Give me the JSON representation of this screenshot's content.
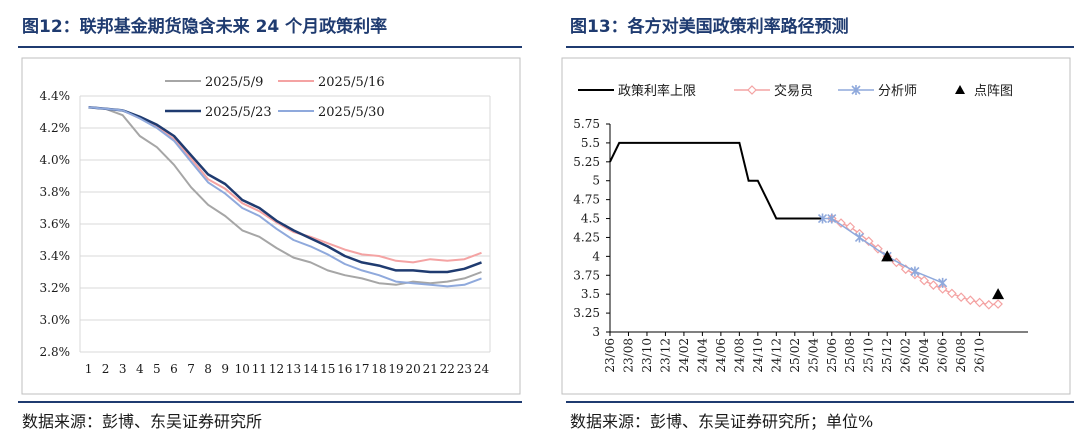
{
  "left_panel": {
    "title": "图12：联邦基金期货隐含未来 24 个月政策利率",
    "source": "数据来源：彭博、东吴证券研究所"
  },
  "right_panel": {
    "title": "图13：各方对美国政策利率路径预测",
    "source": "数据来源：彭博、东吴证券研究所；单位%"
  },
  "colors": {
    "title_blue": "#1f3b70",
    "s_0509": "#a6a6a6",
    "s_0516": "#f4a3a3",
    "s_0523": "#1f3b70",
    "s_0530": "#8fa9dc",
    "policy": "#000000",
    "trader": "#f4a3a3",
    "analyst": "#8fa9dc",
    "dot": "#000000"
  },
  "chart_data": [
    {
      "type": "line",
      "title": "图12：联邦基金期货隐含未来 24 个月政策利率",
      "x": [
        "1",
        "2",
        "3",
        "4",
        "5",
        "6",
        "7",
        "8",
        "9",
        "10",
        "11",
        "12",
        "13",
        "14",
        "15",
        "16",
        "17",
        "18",
        "19",
        "20",
        "21",
        "22",
        "23",
        "24"
      ],
      "y_ticks": [
        "2.8%",
        "3.0%",
        "3.2%",
        "3.4%",
        "3.6%",
        "3.8%",
        "4.0%",
        "4.2%",
        "4.4%"
      ],
      "ylim": [
        2.8,
        4.4
      ],
      "grid": true,
      "legend_position": "top-center",
      "series": [
        {
          "name": "2025/5/9",
          "values": [
            4.33,
            4.32,
            4.28,
            4.15,
            4.08,
            3.97,
            3.83,
            3.72,
            3.65,
            3.56,
            3.52,
            3.45,
            3.39,
            3.36,
            3.31,
            3.28,
            3.26,
            3.23,
            3.22,
            3.24,
            3.23,
            3.24,
            3.26,
            3.3
          ]
        },
        {
          "name": "2025/5/16",
          "values": [
            4.33,
            4.32,
            4.31,
            4.26,
            4.21,
            4.13,
            4.01,
            3.88,
            3.82,
            3.73,
            3.68,
            3.61,
            3.55,
            3.52,
            3.48,
            3.44,
            3.41,
            3.4,
            3.37,
            3.36,
            3.38,
            3.37,
            3.38,
            3.42
          ]
        },
        {
          "name": "2025/5/23",
          "values": [
            4.33,
            4.32,
            4.31,
            4.27,
            4.22,
            4.15,
            4.03,
            3.91,
            3.85,
            3.75,
            3.7,
            3.62,
            3.56,
            3.51,
            3.46,
            3.4,
            3.36,
            3.34,
            3.31,
            3.31,
            3.3,
            3.3,
            3.32,
            3.36
          ]
        },
        {
          "name": "2025/5/30",
          "values": [
            4.33,
            4.32,
            4.31,
            4.26,
            4.2,
            4.12,
            3.99,
            3.86,
            3.79,
            3.7,
            3.65,
            3.57,
            3.5,
            3.46,
            3.41,
            3.35,
            3.31,
            3.28,
            3.24,
            3.23,
            3.22,
            3.21,
            3.22,
            3.26
          ]
        }
      ]
    },
    {
      "type": "line",
      "title": "图13：各方对美国政策利率路径预测",
      "x_ticks": [
        "23/06",
        "23/08",
        "23/10",
        "23/12",
        "24/02",
        "24/04",
        "24/06",
        "24/08",
        "24/10",
        "24/12",
        "25/02",
        "25/04",
        "25/06",
        "25/08",
        "25/10",
        "25/12",
        "26/02",
        "26/04",
        "26/06",
        "26/08",
        "26/10"
      ],
      "y_ticks": [
        "3",
        "3.25",
        "3.5",
        "3.75",
        "4",
        "4.25",
        "4.5",
        "4.75",
        "5",
        "5.25",
        "5.5",
        "5.75"
      ],
      "ylim": [
        3,
        5.75
      ],
      "grid": false,
      "legend_position": "top",
      "series": [
        {
          "name": "政策利率上限",
          "style": "step",
          "x": [
            "23/06",
            "23/07",
            "24/08",
            "24/09",
            "24/10",
            "24/11",
            "24/12",
            "25/05"
          ],
          "values": [
            5.25,
            5.5,
            5.5,
            5.0,
            5.0,
            4.75,
            4.5,
            4.5
          ]
        },
        {
          "name": "交易员",
          "style": "diamond",
          "x": [
            "25/06",
            "25/07",
            "25/08",
            "25/09",
            "25/10",
            "25/11",
            "25/12",
            "26/01",
            "26/02",
            "26/03",
            "26/04",
            "26/05",
            "26/06",
            "26/07",
            "26/08",
            "26/09",
            "26/10",
            "26/11",
            "26/12"
          ],
          "values": [
            4.5,
            4.44,
            4.39,
            4.3,
            4.2,
            4.1,
            4.0,
            3.92,
            3.83,
            3.76,
            3.68,
            3.62,
            3.57,
            3.51,
            3.46,
            3.42,
            3.39,
            3.36,
            3.37
          ]
        },
        {
          "name": "分析师",
          "style": "star",
          "x": [
            "25/05",
            "25/06",
            "25/09",
            "25/12",
            "26/03",
            "26/06"
          ],
          "values": [
            4.5,
            4.5,
            4.25,
            4.0,
            3.8,
            3.65
          ]
        },
        {
          "name": "点阵图",
          "style": "triangle",
          "x": [
            "25/12",
            "26/12"
          ],
          "values": [
            4.0,
            3.5
          ]
        }
      ]
    }
  ]
}
